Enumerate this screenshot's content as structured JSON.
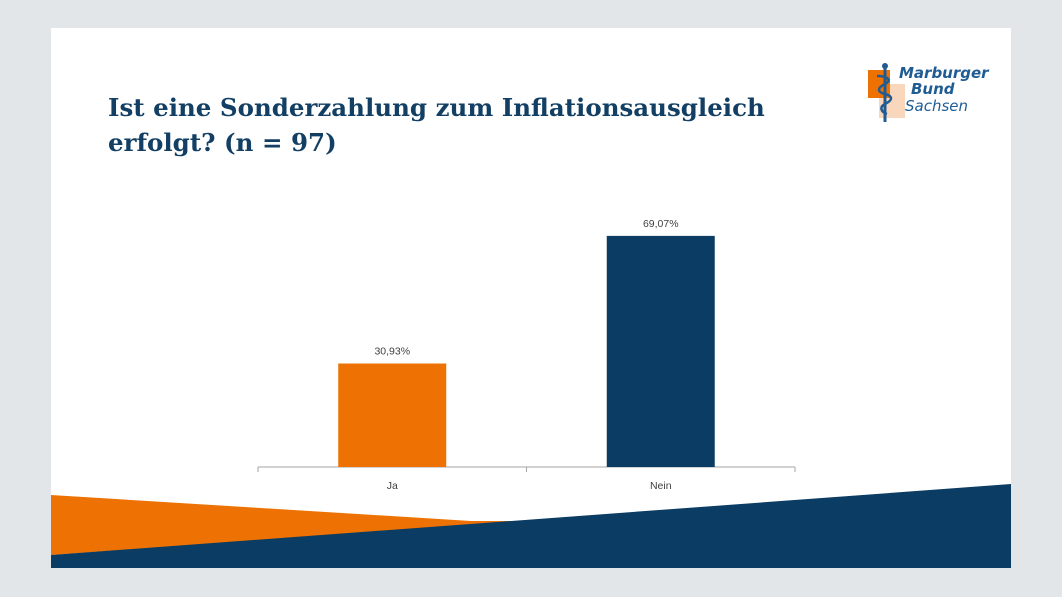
{
  "slide": {
    "title": "Ist eine Sonderzahlung zum Inflationsausgleich erfolgt? (n = 97)"
  },
  "logo": {
    "line1": "Marburger",
    "line2": "Bund",
    "line3": "Sachsen",
    "colors": {
      "orange": "#ee7203",
      "blue": "#1f5c94",
      "peach": "#f9d7bd"
    }
  },
  "chart_data": {
    "type": "bar",
    "categories": [
      "Ja",
      "Nein"
    ],
    "values": [
      30.93,
      69.07
    ],
    "data_labels": [
      "30,93%",
      "69,07%"
    ],
    "colors": [
      "#ee7203",
      "#0b3c63"
    ],
    "ylim": [
      0,
      78
    ],
    "grid": false,
    "legend": "none"
  },
  "decoration": {
    "orange": "#ee7203",
    "navy": "#0b3c63"
  }
}
